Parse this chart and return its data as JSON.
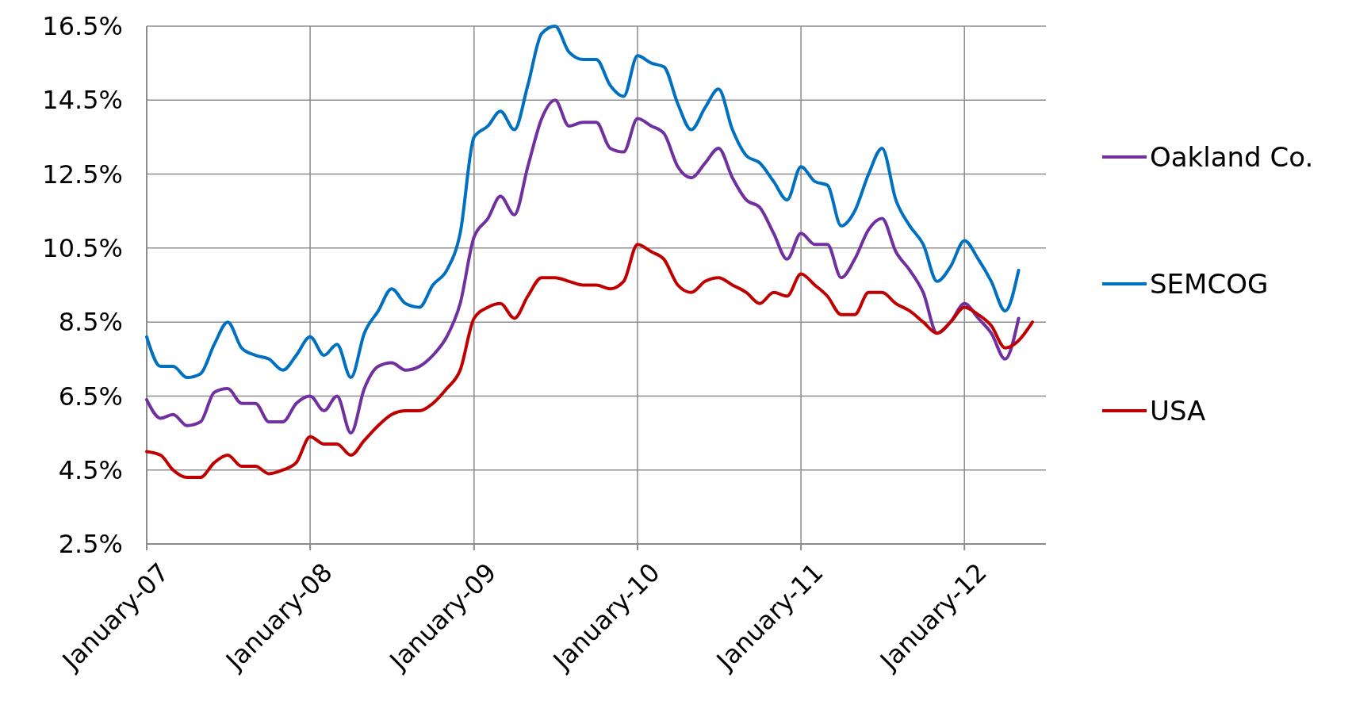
{
  "chart_data": {
    "type": "line",
    "x": [
      "2007-01",
      "2007-02",
      "2007-03",
      "2007-04",
      "2007-05",
      "2007-06",
      "2007-07",
      "2007-08",
      "2007-09",
      "2007-10",
      "2007-11",
      "2007-12",
      "2008-01",
      "2008-02",
      "2008-03",
      "2008-04",
      "2008-05",
      "2008-06",
      "2008-07",
      "2008-08",
      "2008-09",
      "2008-10",
      "2008-11",
      "2008-12",
      "2009-01",
      "2009-02",
      "2009-03",
      "2009-04",
      "2009-05",
      "2009-06",
      "2009-07",
      "2009-08",
      "2009-09",
      "2009-10",
      "2009-11",
      "2009-12",
      "2010-01",
      "2010-02",
      "2010-03",
      "2010-04",
      "2010-05",
      "2010-06",
      "2010-07",
      "2010-08",
      "2010-09",
      "2010-10",
      "2010-11",
      "2010-12",
      "2011-01",
      "2011-02",
      "2011-03",
      "2011-04",
      "2011-05",
      "2011-06",
      "2011-07",
      "2011-08",
      "2011-09",
      "2011-10",
      "2011-11",
      "2011-12",
      "2012-01",
      "2012-02",
      "2012-03",
      "2012-04",
      "2012-05",
      "2012-06"
    ],
    "series": [
      {
        "name": "Oakland Co.",
        "color": "#7030a0",
        "values": [
          6.4,
          5.9,
          6.0,
          5.7,
          5.8,
          6.6,
          6.7,
          6.3,
          6.3,
          5.8,
          5.8,
          6.3,
          6.5,
          6.1,
          6.5,
          5.5,
          6.7,
          7.3,
          7.4,
          7.2,
          7.3,
          7.6,
          8.1,
          9.0,
          10.8,
          11.3,
          11.9,
          11.4,
          12.7,
          14.0,
          14.5,
          13.8,
          13.9,
          13.9,
          13.2,
          13.1,
          14.0,
          13.8,
          13.6,
          12.7,
          12.4,
          12.8,
          13.2,
          12.4,
          11.8,
          11.6,
          10.9,
          10.2,
          10.9,
          10.6,
          10.6,
          9.7,
          10.2,
          11.0,
          11.3,
          10.4,
          9.9,
          9.3,
          8.2,
          8.5,
          9.0,
          8.6,
          8.2,
          7.5,
          8.6,
          null
        ]
      },
      {
        "name": "SEMCOG",
        "color": "#0070c0",
        "values": [
          8.1,
          7.3,
          7.3,
          7.0,
          7.1,
          7.9,
          8.5,
          7.8,
          7.6,
          7.5,
          7.2,
          7.6,
          8.1,
          7.6,
          7.9,
          7.0,
          8.2,
          8.8,
          9.4,
          9.0,
          8.9,
          9.5,
          9.9,
          10.9,
          13.5,
          13.8,
          14.2,
          13.7,
          14.9,
          16.3,
          16.5,
          15.8,
          15.6,
          15.6,
          14.9,
          14.6,
          15.7,
          15.5,
          15.4,
          14.4,
          13.7,
          14.3,
          14.8,
          13.7,
          13.0,
          12.8,
          12.3,
          11.8,
          12.7,
          12.3,
          12.2,
          11.1,
          11.5,
          12.5,
          13.2,
          11.8,
          11.1,
          10.6,
          9.6,
          10.0,
          10.7,
          10.2,
          9.6,
          8.8,
          9.9,
          null
        ]
      },
      {
        "name": "USA",
        "color": "#c00000",
        "values": [
          5.0,
          4.9,
          4.5,
          4.3,
          4.3,
          4.7,
          4.9,
          4.6,
          4.6,
          4.4,
          4.5,
          4.7,
          5.4,
          5.2,
          5.2,
          4.9,
          5.3,
          5.7,
          6.0,
          6.1,
          6.1,
          6.3,
          6.7,
          7.2,
          8.6,
          8.9,
          9.0,
          8.6,
          9.2,
          9.7,
          9.7,
          9.6,
          9.5,
          9.5,
          9.4,
          9.6,
          10.6,
          10.4,
          10.2,
          9.5,
          9.3,
          9.6,
          9.7,
          9.5,
          9.3,
          9.0,
          9.3,
          9.2,
          9.8,
          9.5,
          9.2,
          8.7,
          8.7,
          9.3,
          9.3,
          9.0,
          8.8,
          8.5,
          8.2,
          8.5,
          8.9,
          8.7,
          8.4,
          7.8,
          8.0,
          8.5
        ]
      }
    ],
    "xlim": [
      "2007-01",
      "2012-07"
    ],
    "xticks": [
      {
        "value": "2007-01",
        "label": "January-07"
      },
      {
        "value": "2008-01",
        "label": "January-08"
      },
      {
        "value": "2009-01",
        "label": "January-09"
      },
      {
        "value": "2010-01",
        "label": "January-10"
      },
      {
        "value": "2011-01",
        "label": "January-11"
      },
      {
        "value": "2012-01",
        "label": "January-12"
      }
    ],
    "ylim": [
      2.5,
      16.5
    ],
    "yticks": [
      {
        "value": 2.5,
        "label": "2.5%"
      },
      {
        "value": 4.5,
        "label": "4.5%"
      },
      {
        "value": 6.5,
        "label": "6.5%"
      },
      {
        "value": 8.5,
        "label": "8.5%"
      },
      {
        "value": 10.5,
        "label": "10.5%"
      },
      {
        "value": 12.5,
        "label": "12.5%"
      },
      {
        "value": 14.5,
        "label": "14.5%"
      },
      {
        "value": 16.5,
        "label": "16.5%"
      }
    ],
    "grid": true,
    "legend": "right",
    "marker": "none",
    "line_style": "solid"
  }
}
